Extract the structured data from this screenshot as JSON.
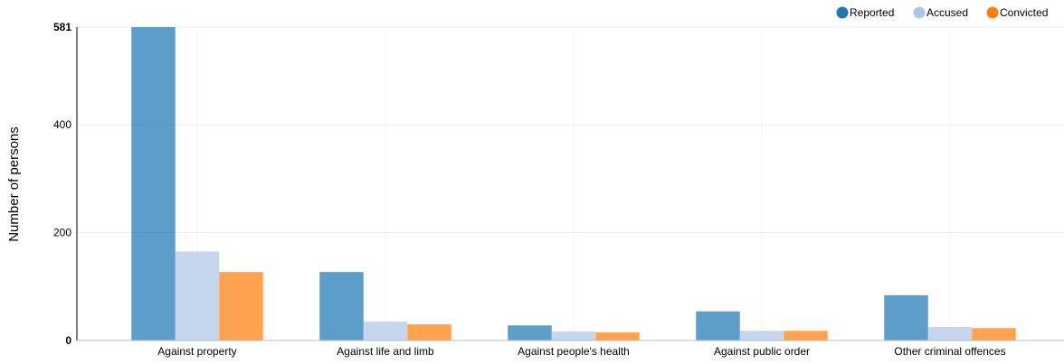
{
  "chart_data": {
    "type": "bar",
    "categories": [
      "Against property",
      "Against life and limb",
      "Against people's health",
      "Against public order",
      "Other criminal offences"
    ],
    "series": [
      {
        "name": "Reported",
        "color": "#1f77b4",
        "legend_color": "#1f77b4",
        "values": [
          581,
          127,
          28,
          54,
          84
        ]
      },
      {
        "name": "Accused",
        "color": "#aec7e8",
        "legend_color": "#aec7e8",
        "values": [
          165,
          35,
          17,
          18,
          25
        ]
      },
      {
        "name": "Convicted",
        "color": "#ff7f0e",
        "legend_color": "#ff7f0e",
        "values": [
          127,
          30,
          15,
          18,
          23
        ]
      }
    ],
    "ylabel": "Number of persons",
    "ylim": [
      0,
      581
    ],
    "yticks": [
      "0",
      "200",
      "400",
      "581"
    ],
    "ytick_values": [
      0,
      200,
      400,
      581
    ],
    "grid": true,
    "legend_position": "top-right"
  }
}
